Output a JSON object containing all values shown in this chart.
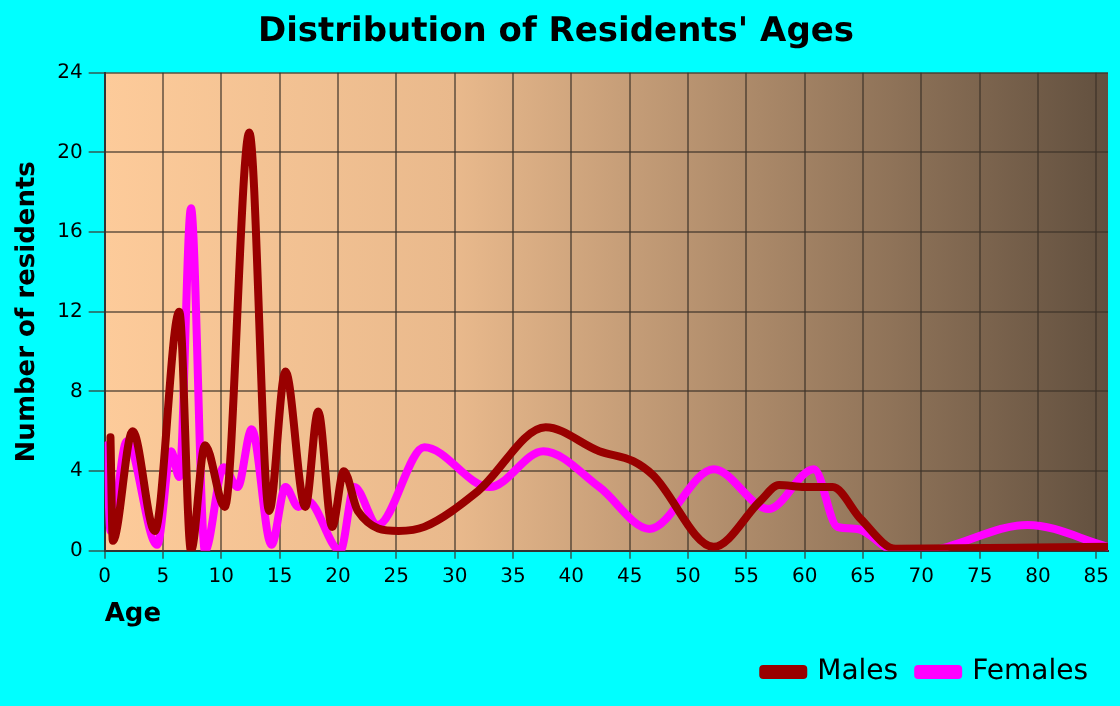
{
  "chart_data": {
    "type": "line",
    "title": "Distribution of Residents' Ages",
    "xlabel": "Age",
    "ylabel": "Number of residents",
    "xlim": [
      0,
      86
    ],
    "xticks": [
      0,
      5,
      10,
      15,
      20,
      25,
      30,
      35,
      40,
      45,
      50,
      55,
      60,
      65,
      70,
      75,
      80,
      85
    ],
    "ylim": [
      0,
      24
    ],
    "yticks": [
      0,
      4,
      8,
      12,
      16,
      20,
      24
    ],
    "grid": true,
    "legend": "bottom right",
    "marker": "none",
    "line_style": "solid",
    "series": [
      {
        "name": "Males",
        "color": "#990000",
        "x": [
          0.5,
          0.7,
          2.4,
          4.3,
          6.4,
          7.4,
          8.6,
          10.3,
          12.4,
          14.1,
          15.5,
          17.2,
          18.3,
          19.5,
          20.5,
          21.7,
          25.2,
          27.4,
          32,
          37.8,
          42.4,
          45.3,
          47,
          52.2,
          56.2,
          57.8,
          60,
          62.4,
          64.8,
          67.8,
          86
        ],
        "values": [
          5.7,
          0.5,
          6,
          1,
          12,
          0,
          5.3,
          2.2,
          21,
          2,
          9,
          2.2,
          7,
          1.2,
          4,
          2,
          1,
          1.2,
          3,
          6.2,
          5,
          4.5,
          3.8,
          0.2,
          2.5,
          3.3,
          3.2,
          3.2,
          1.6,
          0.1,
          0.2
        ]
      },
      {
        "name": "Females",
        "color": "#ff00ff",
        "x": [
          0.2,
          0.5,
          1.9,
          4.5,
          5.7,
          6.4,
          7.4,
          8.6,
          10.2,
          11.4,
          12.6,
          14.3,
          15.5,
          16.6,
          17.4,
          20.2,
          21.4,
          23.4,
          27.4,
          33,
          37.6,
          42.4,
          46.7,
          52.2,
          56.9,
          60.8,
          62.8,
          64.5,
          67.8,
          70,
          79.1,
          86
        ],
        "values": [
          5.3,
          1,
          5.5,
          0.3,
          5,
          3.7,
          17.2,
          0,
          4.2,
          3.2,
          6.1,
          0.3,
          3.2,
          2.2,
          2.5,
          0,
          3.2,
          1.3,
          5.2,
          3.2,
          5,
          3.2,
          1.1,
          4.1,
          2.1,
          4.1,
          1.2,
          1.1,
          0,
          0,
          1.3,
          0.2
        ]
      }
    ]
  }
}
